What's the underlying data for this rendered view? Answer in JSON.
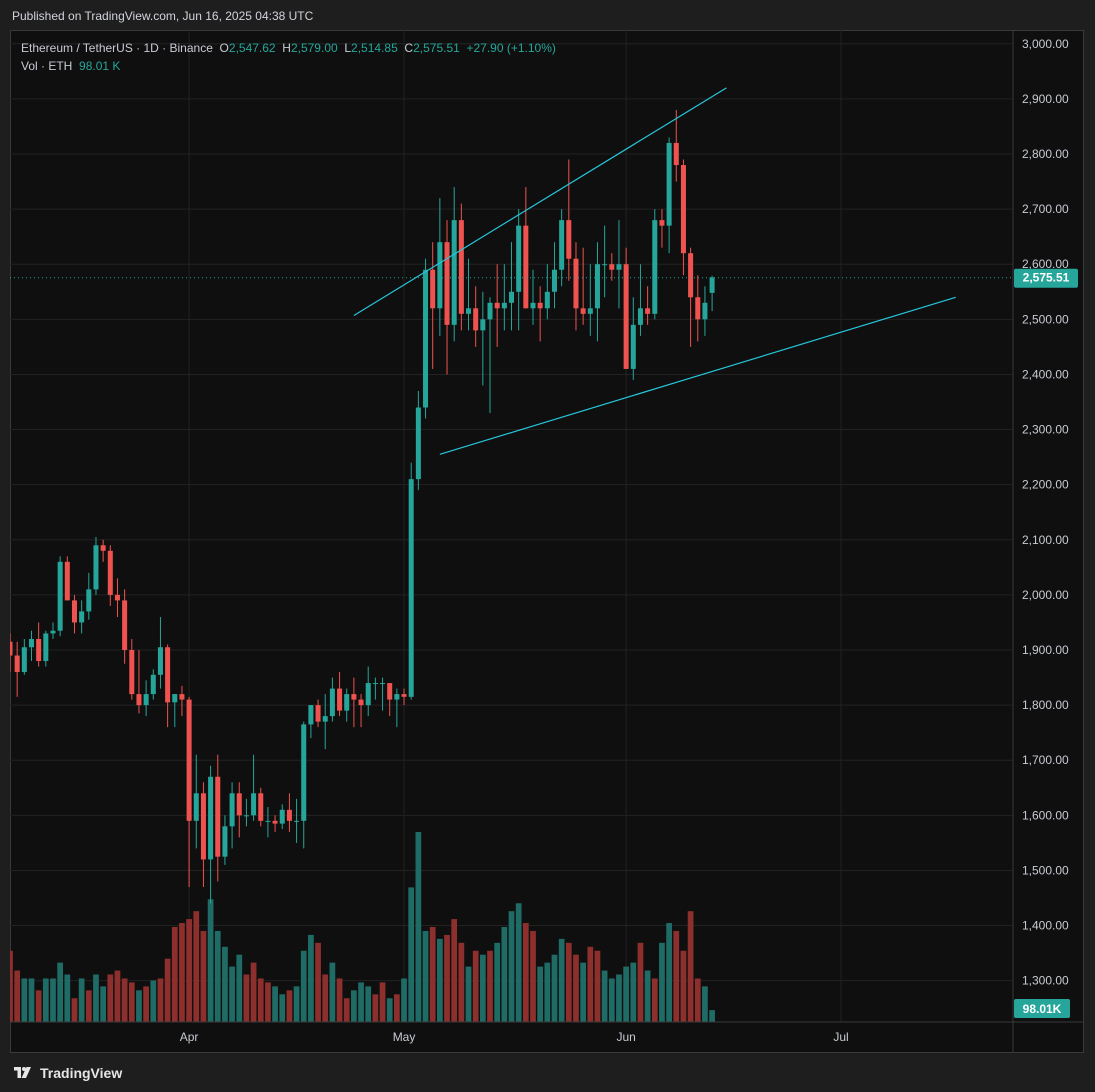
{
  "header": {
    "published": "Published on TradingView.com, Jun 16, 2025 04:38 UTC"
  },
  "footer": {
    "brand": "TradingView"
  },
  "legend": {
    "symbol": "Ethereum / TetherUS · 1D · Binance",
    "o_key": "O",
    "o_val": "2,547.62",
    "h_key": "H",
    "h_val": "2,579.00",
    "l_key": "L",
    "l_val": "2,514.85",
    "c_key": "C",
    "c_val": "2,575.51",
    "change": "+27.90 (+1.10%)",
    "vol_label": "Vol · ETH",
    "vol_val": "98.01 K"
  },
  "colors": {
    "up": "#26a69a",
    "down": "#ef5350",
    "vol_up": "#1f6b66",
    "vol_down": "#8c2f2d",
    "trendline": "#26c6da",
    "grid": "#222222",
    "price_tag": "#26a69a"
  },
  "price_axis": {
    "ticks": [
      "3,000.00",
      "2,900.00",
      "2,800.00",
      "2,700.00",
      "2,600.00",
      "2,500.00",
      "2,400.00",
      "2,300.00",
      "2,200.00",
      "2,100.00",
      "2,000.00",
      "1,900.00",
      "1,800.00",
      "1,700.00",
      "1,600.00",
      "1,500.00",
      "1,400.00",
      "1,300.00"
    ],
    "last_price": "2,575.51",
    "last_volume": "98.01K"
  },
  "time_axis": {
    "ticks": [
      "Apr",
      "May",
      "Jun",
      "Jul"
    ]
  },
  "chart_data": {
    "type": "candlestick",
    "title": "Ethereum / TetherUS · 1D · Binance",
    "ylim": [
      1225,
      3025
    ],
    "x_range": [
      "2025-03-07",
      "2025-07-25"
    ],
    "candles_start": "2025-03-07",
    "candles": [
      [
        1915,
        1930,
        1860,
        1890
      ],
      [
        1890,
        1915,
        1815,
        1860
      ],
      [
        1860,
        1920,
        1855,
        1905
      ],
      [
        1905,
        1935,
        1880,
        1920
      ],
      [
        1920,
        1950,
        1870,
        1880
      ],
      [
        1880,
        1935,
        1870,
        1930
      ],
      [
        1930,
        1950,
        1920,
        1935
      ],
      [
        1935,
        2070,
        1925,
        2060
      ],
      [
        2060,
        2070,
        1990,
        1990
      ],
      [
        1990,
        2000,
        1930,
        1950
      ],
      [
        1950,
        1990,
        1930,
        1970
      ],
      [
        1970,
        2040,
        1955,
        2010
      ],
      [
        2010,
        2105,
        2000,
        2090
      ],
      [
        2090,
        2100,
        2060,
        2080
      ],
      [
        2080,
        2090,
        1980,
        2000
      ],
      [
        2000,
        2030,
        1960,
        1990
      ],
      [
        1990,
        2010,
        1875,
        1900
      ],
      [
        1900,
        1920,
        1810,
        1820
      ],
      [
        1820,
        1900,
        1785,
        1800
      ],
      [
        1800,
        1845,
        1780,
        1820
      ],
      [
        1820,
        1865,
        1810,
        1855
      ],
      [
        1855,
        1960,
        1830,
        1905
      ],
      [
        1905,
        1910,
        1760,
        1805
      ],
      [
        1805,
        1820,
        1760,
        1820
      ],
      [
        1820,
        1835,
        1780,
        1810
      ],
      [
        1810,
        1815,
        1470,
        1590
      ],
      [
        1590,
        1710,
        1540,
        1640
      ],
      [
        1640,
        1660,
        1470,
        1520
      ],
      [
        1520,
        1690,
        1440,
        1670
      ],
      [
        1670,
        1710,
        1480,
        1525
      ],
      [
        1525,
        1600,
        1510,
        1580
      ],
      [
        1580,
        1660,
        1540,
        1640
      ],
      [
        1640,
        1660,
        1560,
        1600
      ],
      [
        1600,
        1630,
        1580,
        1600
      ],
      [
        1600,
        1710,
        1590,
        1640
      ],
      [
        1640,
        1650,
        1580,
        1590
      ],
      [
        1590,
        1615,
        1560,
        1590
      ],
      [
        1590,
        1600,
        1570,
        1585
      ],
      [
        1585,
        1620,
        1575,
        1610
      ],
      [
        1610,
        1640,
        1570,
        1590
      ],
      [
        1590,
        1630,
        1550,
        1590
      ],
      [
        1590,
        1770,
        1540,
        1765
      ],
      [
        1765,
        1800,
        1740,
        1800
      ],
      [
        1800,
        1810,
        1760,
        1770
      ],
      [
        1770,
        1820,
        1720,
        1780
      ],
      [
        1780,
        1850,
        1770,
        1830
      ],
      [
        1830,
        1860,
        1780,
        1790
      ],
      [
        1790,
        1830,
        1770,
        1820
      ],
      [
        1820,
        1850,
        1760,
        1810
      ],
      [
        1810,
        1820,
        1760,
        1800
      ],
      [
        1800,
        1870,
        1780,
        1840
      ],
      [
        1840,
        1850,
        1810,
        1840
      ],
      [
        1840,
        1850,
        1790,
        1840
      ],
      [
        1840,
        1840,
        1780,
        1810
      ],
      [
        1810,
        1830,
        1760,
        1820
      ],
      [
        1820,
        1830,
        1800,
        1815
      ],
      [
        1815,
        2240,
        1810,
        2210
      ],
      [
        2210,
        2370,
        2190,
        2340
      ],
      [
        2340,
        2610,
        2320,
        2590
      ],
      [
        2590,
        2640,
        2410,
        2520
      ],
      [
        2520,
        2720,
        2470,
        2640
      ],
      [
        2640,
        2680,
        2400,
        2490
      ],
      [
        2490,
        2740,
        2460,
        2680
      ],
      [
        2680,
        2710,
        2480,
        2510
      ],
      [
        2510,
        2610,
        2480,
        2520
      ],
      [
        2520,
        2560,
        2450,
        2480
      ],
      [
        2480,
        2550,
        2380,
        2500
      ],
      [
        2500,
        2540,
        2330,
        2530
      ],
      [
        2530,
        2600,
        2450,
        2520
      ],
      [
        2520,
        2600,
        2480,
        2530
      ],
      [
        2530,
        2640,
        2480,
        2550
      ],
      [
        2550,
        2700,
        2480,
        2670
      ],
      [
        2670,
        2740,
        2520,
        2520
      ],
      [
        2520,
        2590,
        2490,
        2530
      ],
      [
        2530,
        2560,
        2460,
        2520
      ],
      [
        2520,
        2600,
        2500,
        2550
      ],
      [
        2550,
        2640,
        2520,
        2590
      ],
      [
        2590,
        2700,
        2560,
        2680
      ],
      [
        2680,
        2790,
        2570,
        2610
      ],
      [
        2610,
        2640,
        2480,
        2520
      ],
      [
        2520,
        2630,
        2490,
        2510
      ],
      [
        2510,
        2600,
        2470,
        2520
      ],
      [
        2520,
        2640,
        2460,
        2600
      ],
      [
        2600,
        2670,
        2540,
        2600
      ],
      [
        2600,
        2620,
        2570,
        2590
      ],
      [
        2590,
        2680,
        2520,
        2600
      ],
      [
        2600,
        2630,
        2410,
        2410
      ],
      [
        2410,
        2540,
        2390,
        2490
      ],
      [
        2490,
        2600,
        2470,
        2520
      ],
      [
        2520,
        2560,
        2490,
        2510
      ],
      [
        2510,
        2700,
        2500,
        2680
      ],
      [
        2680,
        2700,
        2630,
        2670
      ],
      [
        2670,
        2830,
        2620,
        2820
      ],
      [
        2820,
        2880,
        2750,
        2780
      ],
      [
        2780,
        2790,
        2580,
        2620
      ],
      [
        2620,
        2630,
        2450,
        2540
      ],
      [
        2540,
        2580,
        2460,
        2500
      ],
      [
        2500,
        2560,
        2470,
        2530
      ],
      [
        2548,
        2579,
        2515,
        2576
      ]
    ],
    "volume": [
      [
        180,
        0
      ],
      [
        130,
        0
      ],
      [
        110,
        1
      ],
      [
        110,
        1
      ],
      [
        80,
        0
      ],
      [
        110,
        1
      ],
      [
        110,
        1
      ],
      [
        150,
        1
      ],
      [
        120,
        1
      ],
      [
        60,
        0
      ],
      [
        110,
        1
      ],
      [
        80,
        0
      ],
      [
        120,
        1
      ],
      [
        90,
        1
      ],
      [
        120,
        0
      ],
      [
        130,
        0
      ],
      [
        110,
        0
      ],
      [
        100,
        0
      ],
      [
        80,
        1
      ],
      [
        90,
        0
      ],
      [
        105,
        1
      ],
      [
        110,
        0
      ],
      [
        160,
        0
      ],
      [
        240,
        0
      ],
      [
        250,
        0
      ],
      [
        260,
        0
      ],
      [
        280,
        0
      ],
      [
        230,
        0
      ],
      [
        310,
        1
      ],
      [
        230,
        1
      ],
      [
        190,
        1
      ],
      [
        140,
        1
      ],
      [
        170,
        1
      ],
      [
        120,
        0
      ],
      [
        150,
        0
      ],
      [
        110,
        0
      ],
      [
        100,
        0
      ],
      [
        90,
        1
      ],
      [
        70,
        1
      ],
      [
        80,
        0
      ],
      [
        90,
        1
      ],
      [
        180,
        1
      ],
      [
        220,
        1
      ],
      [
        200,
        0
      ],
      [
        120,
        0
      ],
      [
        150,
        1
      ],
      [
        110,
        0
      ],
      [
        60,
        0
      ],
      [
        80,
        1
      ],
      [
        100,
        1
      ],
      [
        90,
        1
      ],
      [
        70,
        0
      ],
      [
        100,
        0
      ],
      [
        60,
        1
      ],
      [
        70,
        0
      ],
      [
        110,
        1
      ],
      [
        340,
        1
      ],
      [
        480,
        1
      ],
      [
        230,
        1
      ],
      [
        240,
        0
      ],
      [
        210,
        1
      ],
      [
        220,
        0
      ],
      [
        260,
        0
      ],
      [
        200,
        0
      ],
      [
        140,
        1
      ],
      [
        180,
        0
      ],
      [
        170,
        1
      ],
      [
        180,
        0
      ],
      [
        200,
        1
      ],
      [
        240,
        1
      ],
      [
        280,
        1
      ],
      [
        300,
        1
      ],
      [
        250,
        0
      ],
      [
        230,
        0
      ],
      [
        140,
        1
      ],
      [
        150,
        1
      ],
      [
        170,
        1
      ],
      [
        210,
        1
      ],
      [
        200,
        0
      ],
      [
        170,
        0
      ],
      [
        150,
        1
      ],
      [
        190,
        0
      ],
      [
        180,
        0
      ],
      [
        130,
        1
      ],
      [
        110,
        1
      ],
      [
        120,
        1
      ],
      [
        140,
        1
      ],
      [
        150,
        1
      ],
      [
        200,
        0
      ],
      [
        130,
        1
      ],
      [
        110,
        0
      ],
      [
        200,
        1
      ],
      [
        250,
        1
      ],
      [
        230,
        0
      ],
      [
        180,
        0
      ],
      [
        280,
        0
      ],
      [
        110,
        0
      ],
      [
        90,
        1
      ],
      [
        30,
        1
      ]
    ],
    "trendlines": [
      {
        "name": "upper",
        "from": [
          "2025-04-24",
          2507
        ],
        "to": [
          "2025-06-15",
          2920
        ]
      },
      {
        "name": "lower",
        "from": [
          "2025-05-06",
          2255
        ],
        "to": [
          "2025-07-17",
          2540
        ]
      }
    ],
    "last_price": 2575.51,
    "last_volume_label": "98.01K"
  }
}
